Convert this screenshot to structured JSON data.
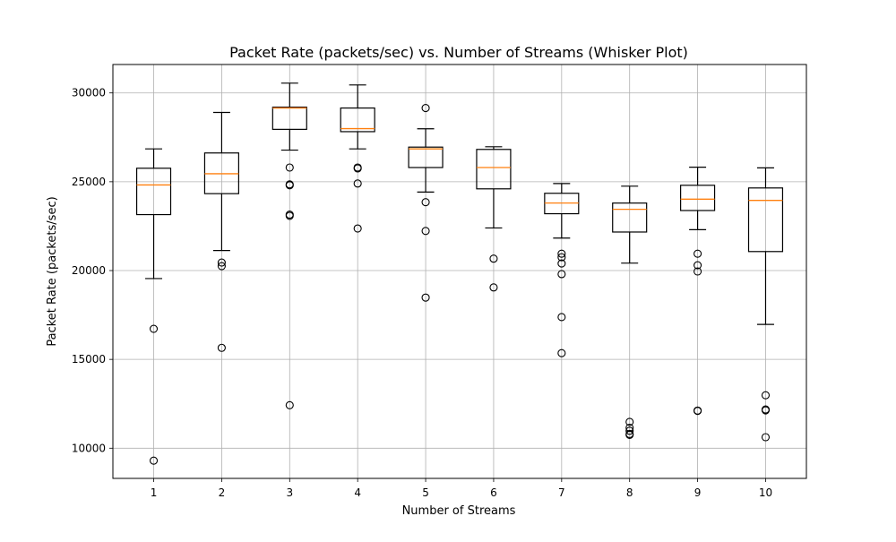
{
  "chart_data": {
    "type": "box",
    "title": "Packet Rate (packets/sec) vs. Number of Streams (Whisker Plot)",
    "xlabel": "Number of Streams",
    "ylabel": "Packet Rate (packets/sec)",
    "ylim": [
      8300,
      31600
    ],
    "yticks": [
      10000,
      15000,
      20000,
      25000,
      30000
    ],
    "grid": true,
    "categories": [
      "1",
      "2",
      "3",
      "4",
      "5",
      "6",
      "7",
      "8",
      "9",
      "10"
    ],
    "boxes": [
      {
        "category": "1",
        "whisker_low": 19550,
        "q1": 23150,
        "median": 24820,
        "q3": 25760,
        "whisker_high": 26850,
        "outliers": [
          16720,
          9300
        ]
      },
      {
        "category": "2",
        "whisker_low": 21130,
        "q1": 24330,
        "median": 25450,
        "q3": 26620,
        "whisker_high": 28900,
        "outliers": [
          20450,
          20250,
          15650
        ]
      },
      {
        "category": "3",
        "whisker_low": 26780,
        "q1": 27950,
        "median": 29150,
        "q3": 29200,
        "whisker_high": 30550,
        "outliers": [
          25800,
          24850,
          24800,
          23150,
          23080,
          12420
        ]
      },
      {
        "category": "4",
        "whisker_low": 26850,
        "q1": 27820,
        "median": 27990,
        "q3": 29150,
        "whisker_high": 30450,
        "outliers": [
          25800,
          25750,
          24900,
          22370
        ]
      },
      {
        "category": "5",
        "whisker_low": 24420,
        "q1": 25800,
        "median": 26850,
        "q3": 26950,
        "whisker_high": 27980,
        "outliers": [
          29150,
          23850,
          22230,
          18480
        ]
      },
      {
        "category": "6",
        "whisker_low": 22400,
        "q1": 24600,
        "median": 25800,
        "q3": 26820,
        "whisker_high": 26970,
        "outliers": [
          20670,
          19050
        ]
      },
      {
        "category": "7",
        "whisker_low": 21830,
        "q1": 23200,
        "median": 23800,
        "q3": 24350,
        "whisker_high": 24900,
        "outliers": [
          20950,
          20750,
          20400,
          19800,
          17380,
          15350
        ]
      },
      {
        "category": "8",
        "whisker_low": 20420,
        "q1": 22170,
        "median": 23450,
        "q3": 23800,
        "whisker_high": 24750,
        "outliers": [
          11480,
          11150,
          10980,
          10800,
          10750
        ]
      },
      {
        "category": "9",
        "whisker_low": 22300,
        "q1": 23380,
        "median": 24020,
        "q3": 24800,
        "whisker_high": 25820,
        "outliers": [
          20950,
          20300,
          19950,
          12120,
          12100
        ]
      },
      {
        "category": "10",
        "whisker_low": 16970,
        "q1": 21070,
        "median": 23950,
        "q3": 24650,
        "whisker_high": 25780,
        "outliers": [
          12980,
          12180,
          12130,
          10620
        ]
      }
    ],
    "colors": {
      "box": "#000000",
      "median": "#ff7f0e",
      "grid": "#b0b0b0",
      "background": "#ffffff"
    }
  }
}
